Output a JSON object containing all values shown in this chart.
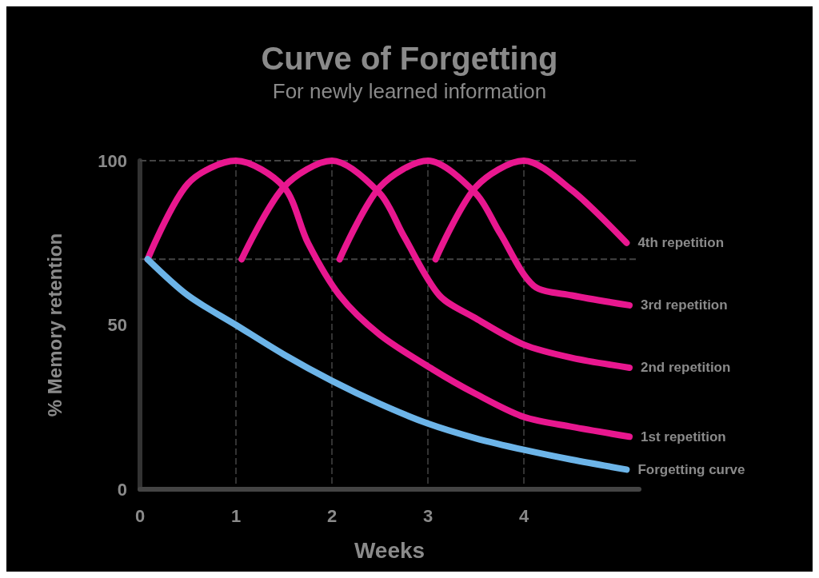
{
  "chart_data": {
    "type": "line",
    "title": "Curve of Forgetting",
    "subtitle": "For newly learned information",
    "xlabel": "Weeks",
    "ylabel": "% Memory retention",
    "xlim": [
      0,
      5.2
    ],
    "xticks": [
      0,
      1,
      2,
      3,
      4
    ],
    "ylim": [
      0,
      100
    ],
    "yticks": [
      0,
      50,
      100
    ],
    "grid": "x",
    "marker": "none",
    "line_style": "solid",
    "ref_lines": [
      {
        "axis": "y",
        "value": 100,
        "line_style": "dashed"
      },
      {
        "axis": "y",
        "value": 70,
        "line_style": "dashed"
      }
    ],
    "series": [
      {
        "name": "4th repetition",
        "color": "#e8178f",
        "x": [
          3.08,
          3.5,
          4,
          4.5,
          5.07
        ],
        "values": [
          70,
          92,
          100,
          91,
          75
        ]
      },
      {
        "name": "3rd repetition",
        "color": "#e8178f",
        "x": [
          2.08,
          2.5,
          3,
          3.5,
          3.75,
          4.1,
          4.5,
          5.1
        ],
        "values": [
          70,
          92,
          100,
          90,
          78,
          62,
          59,
          56
        ]
      },
      {
        "name": "2nd repetition",
        "color": "#e8178f",
        "x": [
          1.06,
          1.5,
          2,
          2.5,
          2.75,
          3.12,
          3.5,
          4,
          4.5,
          5.1
        ],
        "values": [
          70,
          92,
          100,
          90,
          77,
          59,
          52,
          44,
          40,
          37
        ]
      },
      {
        "name": "1st repetition",
        "color": "#e8178f",
        "x": [
          0.08,
          0.5,
          1,
          1.5,
          1.75,
          2.08,
          2.5,
          3.05,
          3.5,
          4,
          4.5,
          5.1
        ],
        "values": [
          70,
          93,
          100,
          92,
          75,
          59,
          47,
          36.5,
          29,
          22,
          19,
          16
        ]
      },
      {
        "name": "Forgetting curve",
        "color": "#6cb4e8",
        "x": [
          0.08,
          0.5,
          1,
          1.5,
          2,
          2.5,
          3,
          3.5,
          4,
          4.5,
          5.07
        ],
        "values": [
          70,
          59,
          50,
          41,
          33,
          26,
          20,
          15.5,
          12,
          9,
          6
        ]
      }
    ]
  }
}
